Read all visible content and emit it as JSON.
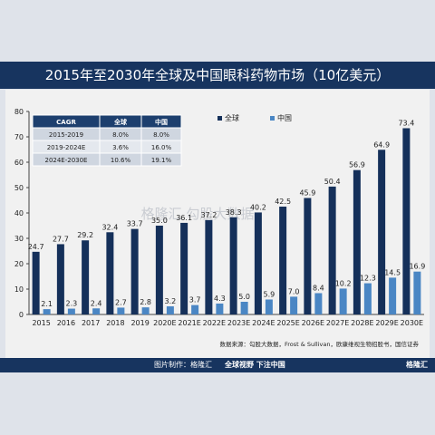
{
  "header": {
    "title": "2015年至2030年全球及中国眼科药物市场（10亿美元）"
  },
  "source": "数据来源：勾股大数据，Frost & Sullivan，欧康维视生物招股书，国信证券",
  "watermark": "格隆汇 勾股大数据",
  "footer": {
    "made_by": "图片制作：格隆汇",
    "slogan": "全球视野 下注中国",
    "brand": "格隆汇"
  },
  "colors": {
    "global": "#15305a",
    "china": "#4a86c4",
    "header_bg": "#17345f"
  },
  "cagr_table": {
    "headers": [
      "CAGR",
      "全球",
      "中国"
    ],
    "rows": [
      [
        "2015-2019",
        "8.0%",
        "8.0%"
      ],
      [
        "2019-2024E",
        "3.6%",
        "16.0%"
      ],
      [
        "2024E-2030E",
        "10.6%",
        "19.1%"
      ]
    ]
  },
  "chart_data": {
    "type": "bar",
    "title": "2015年至2030年全球及中国眼科药物市场（10亿美元）",
    "categories": [
      "2015",
      "2016",
      "2017",
      "2018",
      "2019",
      "2020E",
      "2021E",
      "2022E",
      "2023E",
      "2024E",
      "2025E",
      "2026E",
      "2027E",
      "2028E",
      "2029E",
      "2030E"
    ],
    "series": [
      {
        "name": "全球",
        "values": [
          24.7,
          27.7,
          29.2,
          32.4,
          33.7,
          35.0,
          36.1,
          37.2,
          38.3,
          40.2,
          42.5,
          45.9,
          50.4,
          56.9,
          64.9,
          73.4
        ]
      },
      {
        "name": "中国",
        "values": [
          2.1,
          2.3,
          2.4,
          2.7,
          2.8,
          3.2,
          3.7,
          4.3,
          5.0,
          5.9,
          7.0,
          8.4,
          10.2,
          12.3,
          14.5,
          16.9
        ]
      }
    ],
    "ylim": [
      0,
      80
    ],
    "yticks": [
      0,
      10,
      20,
      30,
      40,
      50,
      60,
      70,
      80
    ],
    "legend": "top-right",
    "grid": false
  }
}
